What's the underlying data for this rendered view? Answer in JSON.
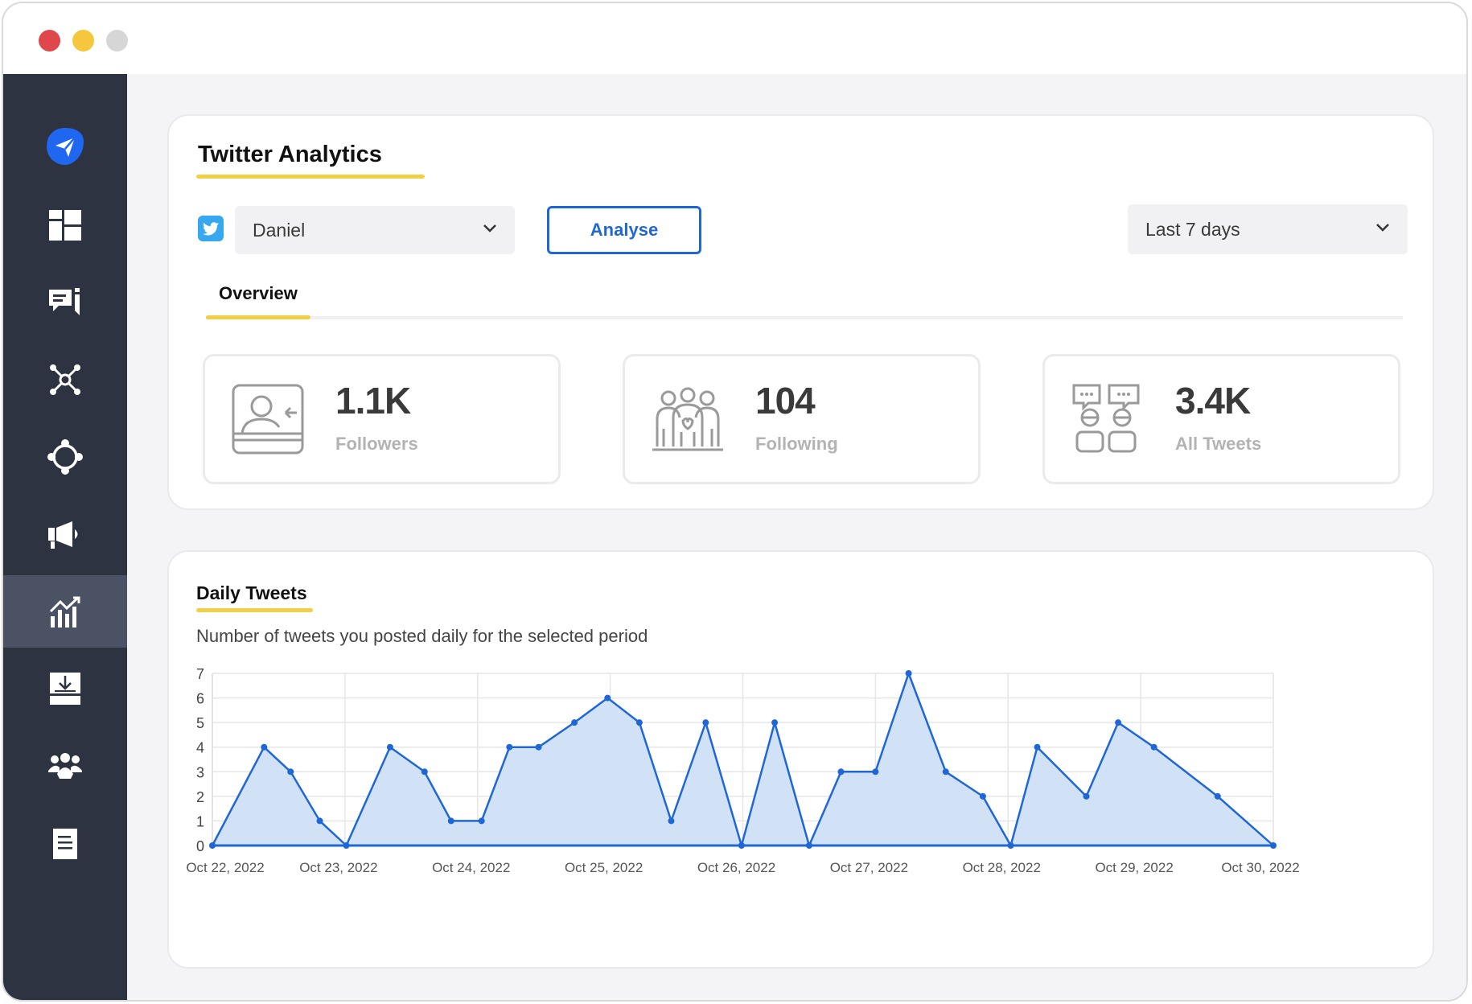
{
  "window": {
    "controls": [
      "close",
      "minimize",
      "zoom"
    ]
  },
  "sidebar": {
    "items": [
      {
        "name": "logo",
        "icon": "paper-plane-icon"
      },
      {
        "name": "dashboard",
        "icon": "dashboard-grid-icon"
      },
      {
        "name": "inbox",
        "icon": "comments-icon"
      },
      {
        "name": "network",
        "icon": "network-hub-icon"
      },
      {
        "name": "connections",
        "icon": "circle-nodes-icon"
      },
      {
        "name": "campaigns",
        "icon": "megaphone-icon"
      },
      {
        "name": "analytics",
        "icon": "analytics-chart-icon",
        "active": true
      },
      {
        "name": "downloads",
        "icon": "download-tray-icon"
      },
      {
        "name": "team",
        "icon": "team-icon"
      },
      {
        "name": "reports",
        "icon": "document-icon"
      }
    ]
  },
  "analytics": {
    "title": "Twitter Analytics",
    "account_select": {
      "value": "Daniel",
      "icon": "twitter-icon"
    },
    "analyse_button": "Analyse",
    "period_select": {
      "value": "Last 7 days"
    },
    "tabs": [
      {
        "label": "Overview",
        "active": true
      }
    ],
    "stats": [
      {
        "value": "1.1K",
        "label": "Followers",
        "icon": "followers-icon"
      },
      {
        "value": "104",
        "label": "Following",
        "icon": "following-group-icon"
      },
      {
        "value": "3.4K",
        "label": "All Tweets",
        "icon": "tweets-chat-icon"
      }
    ]
  },
  "daily_tweets": {
    "title": "Daily Tweets",
    "subtitle": "Number of tweets you posted daily for the selected period"
  },
  "colors": {
    "sidebar_bg": "#2d3341",
    "sidebar_active": "#4a5263",
    "accent_blue": "#1f67d6",
    "highlight_yellow": "#f3cf45",
    "chart_line": "#1f67d6",
    "chart_fill": "#cfe0f7"
  },
  "chart_data": {
    "type": "area",
    "title": "",
    "xlabel": "",
    "ylabel": "",
    "x_ticks": [
      "Oct 22, 2022",
      "Oct 23, 2022",
      "Oct 24, 2022",
      "Oct 25, 2022",
      "Oct 26, 2022",
      "Oct 27, 2022",
      "Oct 28, 2022",
      "Oct 29, 2022",
      "Oct 30, 2022"
    ],
    "y_ticks": [
      0,
      1,
      2,
      3,
      4,
      5,
      6,
      7
    ],
    "ylim": [
      0,
      7
    ],
    "xlim": [
      0,
      8
    ],
    "grid": true,
    "series": [
      {
        "x": [
          0,
          0.39,
          0.59,
          0.81,
          1.01,
          1.34,
          1.6,
          1.8,
          2.03,
          2.24,
          2.46,
          2.73,
          2.98,
          3.22,
          3.46,
          3.72,
          3.99,
          4.24,
          4.5,
          4.74,
          5.0,
          5.25,
          5.53,
          5.81,
          6.02,
          6.22,
          6.59,
          6.83,
          7.1,
          7.58,
          8.0
        ],
        "y": [
          0,
          4,
          3,
          1,
          0,
          4,
          3,
          1,
          1,
          4,
          4,
          5,
          6,
          5,
          1,
          5,
          0,
          5,
          0,
          3,
          3,
          7,
          3,
          2,
          0,
          4,
          2,
          5,
          4,
          2,
          0
        ]
      }
    ]
  }
}
